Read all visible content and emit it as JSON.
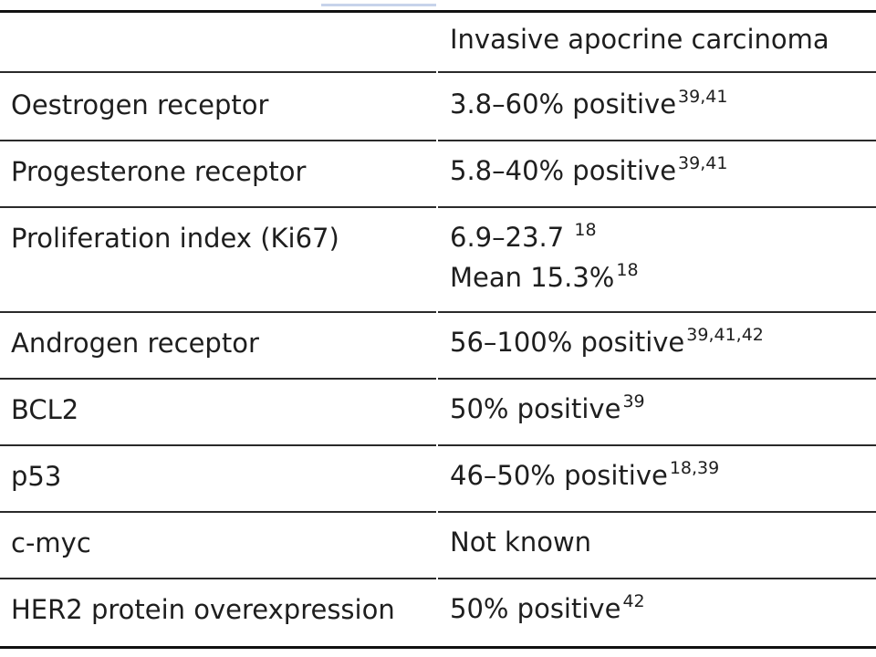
{
  "table": {
    "header": {
      "left": "",
      "right": "Invasive apocrine carcinoma"
    },
    "rows": [
      {
        "label": "Oestrogen receptor",
        "value": "3.8–60% positive",
        "ref": "39,41"
      },
      {
        "label": "Progesterone receptor",
        "value": "5.8–40% positive",
        "ref": "39,41"
      },
      {
        "label": "Proliferation index (Ki67)",
        "value": "6.9–23.7 ",
        "ref": "18",
        "value2": "Mean 15.3%",
        "ref2": "18"
      },
      {
        "label": "Androgen receptor",
        "value": "56–100% positive",
        "ref": "39,41,42"
      },
      {
        "label": "BCL2",
        "value": "50% positive",
        "ref": "39"
      },
      {
        "label": "p53",
        "value": "46–50% positive",
        "ref": "18,39"
      },
      {
        "label": "c-myc",
        "value": "Not known",
        "ref": ""
      },
      {
        "label": "HER2 protein overexpression",
        "value": "50% positive",
        "ref": "42"
      }
    ]
  }
}
